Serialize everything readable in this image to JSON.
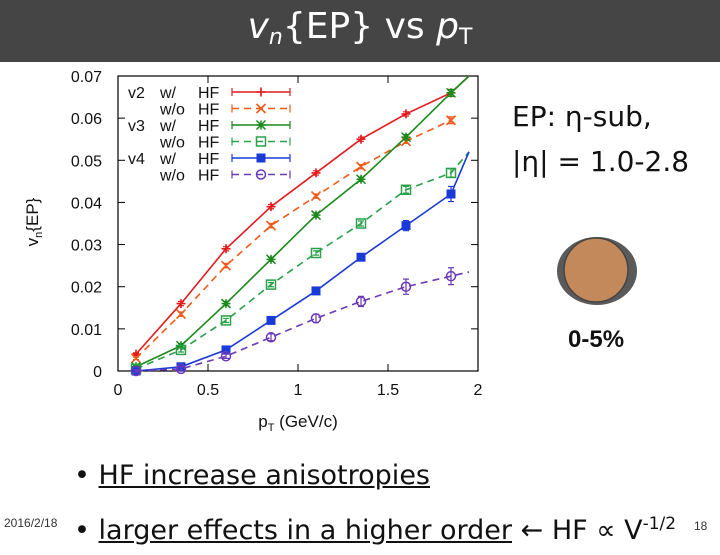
{
  "slide": {
    "title_v": "v",
    "title_n": "n",
    "title_mid": "{EP} vs ",
    "title_p": "p",
    "title_t": "T",
    "ep_line1": "EP: η-sub,",
    "ep_line2": "|η| = 1.0-2.8",
    "centrality": "0-5%",
    "bullet1": "HF increase anisotropies",
    "bullet2_underlined": "larger effects in a higher order",
    "bullet2_arrow": "←",
    "bullet2_rest": " HF ∝ V",
    "bullet2_exp": "-1/2",
    "date": "2016/2/18",
    "page": "18"
  },
  "colors": {
    "title_bg": "#454545",
    "v2": "#e41a1c",
    "v2b": "#f05a1a",
    "v3": "#1a8a1a",
    "v3b": "#2aa04a",
    "v4": "#1a3ad8",
    "v4b": "#6a3ab8",
    "nucleus_outer": "#5a5a5a",
    "nucleus_inner": "#c4895a"
  },
  "chart_data": {
    "type": "line",
    "xlabel_main": "p",
    "xlabel_sub": "T",
    "xlabel_unit": " (GeV/c)",
    "ylabel_main": "v",
    "ylabel_sub": "n",
    "ylabel_rest": "{EP}",
    "xlim": [
      0,
      2
    ],
    "ylim": [
      0,
      0.07
    ],
    "xticks": [
      0,
      0.5,
      1,
      1.5,
      2
    ],
    "xtick_labels": [
      "0",
      "0.5",
      "1",
      "1.5",
      "2"
    ],
    "yticks": [
      0,
      0.01,
      0.02,
      0.03,
      0.04,
      0.05,
      0.06,
      0.07
    ],
    "ytick_labels": [
      "0",
      "0.01",
      "0.02",
      "0.03",
      "0.04",
      "0.05",
      "0.06",
      "0.07"
    ],
    "legend_position": "top-left",
    "series": [
      {
        "name": "v2 w/ HF",
        "label_a": "v2",
        "label_b": "w/",
        "label_c": "HF",
        "color": "#e41a1c",
        "dash": "solid",
        "marker": "plus",
        "x": [
          0.1,
          0.35,
          0.6,
          0.85,
          1.1,
          1.35,
          1.6,
          1.85,
          1.95
        ],
        "y": [
          0.004,
          0.016,
          0.029,
          0.039,
          0.047,
          0.055,
          0.061,
          0.066,
          0.07
        ],
        "yerr": [
          0.0003,
          0.0005,
          0.0005,
          0.0005,
          0.0005,
          0.0005,
          0.0005,
          0.0008,
          0
        ]
      },
      {
        "name": "v2 w/o HF",
        "label_a": "",
        "label_b": "w/o",
        "label_c": "HF",
        "color": "#f05a1a",
        "dash": "dashed",
        "marker": "cross",
        "x": [
          0.1,
          0.35,
          0.6,
          0.85,
          1.1,
          1.35,
          1.6,
          1.85
        ],
        "y": [
          0.003,
          0.0135,
          0.025,
          0.0345,
          0.0415,
          0.0485,
          0.0545,
          0.0595
        ],
        "yerr": [
          0.0003,
          0.0005,
          0.0005,
          0.0005,
          0.0005,
          0.0005,
          0.0005,
          0.0008
        ]
      },
      {
        "name": "v3 w/ HF",
        "label_a": "v3",
        "label_b": "w/",
        "label_c": "HF",
        "color": "#1a8a1a",
        "dash": "solid",
        "marker": "star",
        "x": [
          0.1,
          0.35,
          0.6,
          0.85,
          1.1,
          1.35,
          1.6,
          1.85,
          1.95
        ],
        "y": [
          0.001,
          0.006,
          0.016,
          0.0265,
          0.037,
          0.0455,
          0.0555,
          0.066,
          0.07
        ],
        "yerr": [
          0.0003,
          0.0005,
          0.0005,
          0.0005,
          0.0005,
          0.0005,
          0.0006,
          0.0008,
          0
        ]
      },
      {
        "name": "v3 w/o HF",
        "label_a": "",
        "label_b": "w/o",
        "label_c": "HF",
        "color": "#2aa04a",
        "dash": "dashed",
        "marker": "square-open",
        "x": [
          0.1,
          0.35,
          0.6,
          0.85,
          1.1,
          1.35,
          1.6,
          1.85,
          1.95
        ],
        "y": [
          0.0005,
          0.005,
          0.012,
          0.0205,
          0.028,
          0.035,
          0.043,
          0.047,
          0.052
        ],
        "yerr": [
          0.0003,
          0.0005,
          0.0005,
          0.0005,
          0.0005,
          0.0006,
          0.0008,
          0.001,
          0
        ]
      },
      {
        "name": "v4 w/ HF",
        "label_a": "v4",
        "label_b": "w/",
        "label_c": "HF",
        "color": "#1a3ad8",
        "dash": "solid",
        "marker": "square-filled",
        "x": [
          0.1,
          0.35,
          0.6,
          0.85,
          1.1,
          1.35,
          1.6,
          1.85,
          1.95
        ],
        "y": [
          0.0,
          0.001,
          0.005,
          0.012,
          0.019,
          0.027,
          0.0345,
          0.042,
          0.052
        ],
        "yerr": [
          0.0003,
          0.0005,
          0.0005,
          0.0005,
          0.0006,
          0.0008,
          0.0012,
          0.0018,
          0
        ]
      },
      {
        "name": "v4 w/o HF",
        "label_a": "",
        "label_b": "w/o",
        "label_c": "HF",
        "color": "#6a3ab8",
        "dash": "dashed",
        "marker": "circle-open",
        "x": [
          0.1,
          0.35,
          0.6,
          0.85,
          1.1,
          1.35,
          1.6,
          1.85,
          1.95
        ],
        "y": [
          0.0,
          0.0005,
          0.0035,
          0.008,
          0.0125,
          0.0165,
          0.02,
          0.0225,
          0.0235
        ],
        "yerr": [
          0.0003,
          0.0005,
          0.0005,
          0.0008,
          0.001,
          0.0012,
          0.0018,
          0.002,
          0
        ]
      }
    ]
  }
}
